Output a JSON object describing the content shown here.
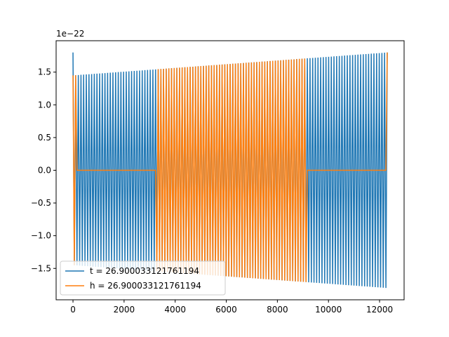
{
  "chart_data": {
    "type": "line",
    "offset_text": "1e−22",
    "scale_multiplier": 1e-22,
    "xlim": [
      -660,
      12960
    ],
    "ylim": [
      -1.98,
      1.98
    ],
    "x_ticks": [
      0,
      2000,
      4000,
      6000,
      8000,
      10000,
      12000
    ],
    "x_tick_labels": [
      "0",
      "2000",
      "4000",
      "6000",
      "8000",
      "10000",
      "12000"
    ],
    "y_ticks": [
      -1.5,
      -1.0,
      -0.5,
      0.0,
      0.5,
      1.0,
      1.5
    ],
    "y_tick_labels": [
      "−1.5",
      "−1.0",
      "−0.5",
      "0.0",
      "0.5",
      "1.0",
      "1.5"
    ],
    "legend_position": "lower-left",
    "series": [
      {
        "name": "t = 26.900033121761194",
        "color": "#1f77b4",
        "x_range": [
          0,
          12300
        ],
        "amplitude_start": 1.45,
        "amplitude_end": 1.8,
        "cycles": 118,
        "initial_spike": 1.8
      },
      {
        "name": "h = 26.900033121761194",
        "color": "#ff7f0e",
        "x_range": [
          0,
          12300
        ],
        "amplitude_start": 1.45,
        "amplitude_end": 1.8,
        "cycles": 118,
        "gaps": [
          [
            150,
            3250
          ],
          [
            9150,
            12300
          ]
        ]
      }
    ]
  }
}
